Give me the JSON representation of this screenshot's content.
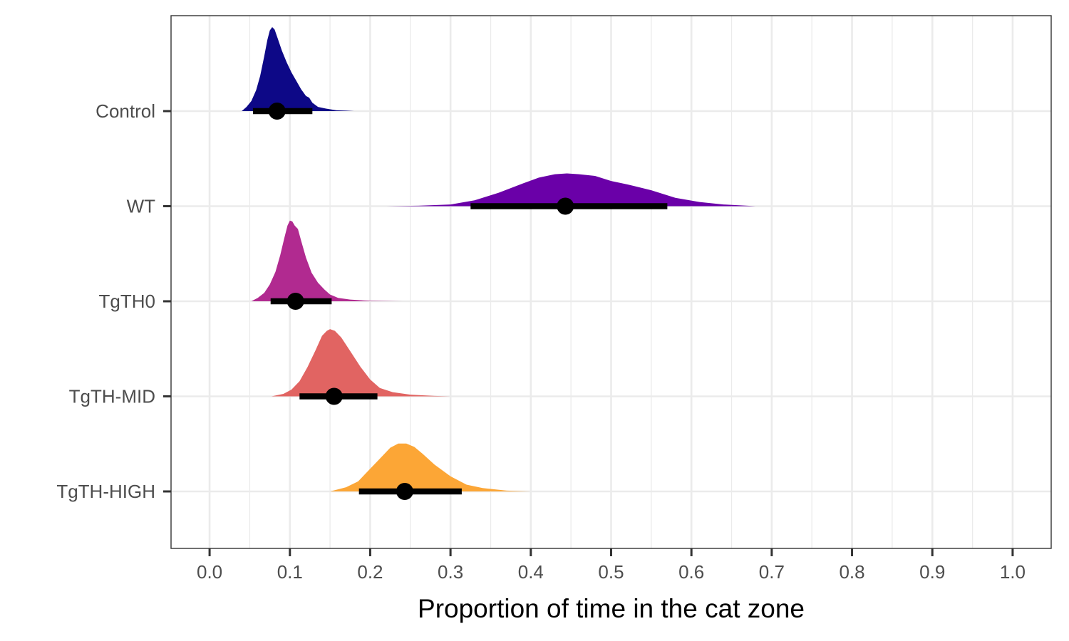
{
  "chart_data": {
    "type": "ridgeline-interval",
    "title": "",
    "xlabel": "Proportion of time in the cat zone",
    "ylabel": "",
    "xlim": [
      -0.048,
      1.048
    ],
    "x_ticks": [
      0.0,
      0.1,
      0.2,
      0.3,
      0.4,
      0.5,
      0.6,
      0.7,
      0.8,
      0.9,
      1.0
    ],
    "x_tick_labels": [
      "0.0",
      "0.1",
      "0.2",
      "0.3",
      "0.4",
      "0.5",
      "0.6",
      "0.7",
      "0.8",
      "0.9",
      "1.0"
    ],
    "grid": true,
    "legend": "none",
    "categories": [
      "Control",
      "WT",
      "TgTH0",
      "TgTH-MID",
      "TgTH-HIGH"
    ],
    "series": [
      {
        "category": "Control",
        "color": "#0d0887",
        "point": 0.084,
        "interval": [
          0.054,
          0.128
        ],
        "density": [
          [
            0.04,
            0.0
          ],
          [
            0.046,
            0.05
          ],
          [
            0.052,
            0.12
          ],
          [
            0.058,
            0.25
          ],
          [
            0.063,
            0.42
          ],
          [
            0.068,
            0.65
          ],
          [
            0.072,
            0.85
          ],
          [
            0.075,
            0.96
          ],
          [
            0.078,
            1.0
          ],
          [
            0.081,
            0.97
          ],
          [
            0.085,
            0.86
          ],
          [
            0.09,
            0.72
          ],
          [
            0.096,
            0.58
          ],
          [
            0.102,
            0.46
          ],
          [
            0.108,
            0.36
          ],
          [
            0.114,
            0.26
          ],
          [
            0.12,
            0.18
          ],
          [
            0.124,
            0.16
          ],
          [
            0.128,
            0.1
          ],
          [
            0.135,
            0.05
          ],
          [
            0.145,
            0.03
          ],
          [
            0.158,
            0.01
          ],
          [
            0.17,
            0.005
          ],
          [
            0.18,
            0.0
          ]
        ]
      },
      {
        "category": "WT",
        "color": "#6a00a8",
        "point": 0.443,
        "interval": [
          0.325,
          0.57
        ],
        "density": [
          [
            0.22,
            0.0
          ],
          [
            0.26,
            0.005
          ],
          [
            0.3,
            0.02
          ],
          [
            0.33,
            0.07
          ],
          [
            0.36,
            0.16
          ],
          [
            0.39,
            0.27
          ],
          [
            0.41,
            0.34
          ],
          [
            0.43,
            0.38
          ],
          [
            0.445,
            0.39
          ],
          [
            0.46,
            0.38
          ],
          [
            0.48,
            0.36
          ],
          [
            0.5,
            0.3
          ],
          [
            0.52,
            0.26
          ],
          [
            0.55,
            0.19
          ],
          [
            0.58,
            0.1
          ],
          [
            0.61,
            0.05
          ],
          [
            0.64,
            0.02
          ],
          [
            0.68,
            0.0
          ]
        ]
      },
      {
        "category": "TgTH0",
        "color": "#b12a90",
        "point": 0.107,
        "interval": [
          0.076,
          0.152
        ],
        "density": [
          [
            0.052,
            0.0
          ],
          [
            0.06,
            0.04
          ],
          [
            0.068,
            0.1
          ],
          [
            0.075,
            0.2
          ],
          [
            0.082,
            0.35
          ],
          [
            0.088,
            0.55
          ],
          [
            0.093,
            0.75
          ],
          [
            0.097,
            0.9
          ],
          [
            0.1,
            0.96
          ],
          [
            0.103,
            0.95
          ],
          [
            0.106,
            0.9
          ],
          [
            0.11,
            0.86
          ],
          [
            0.114,
            0.72
          ],
          [
            0.12,
            0.52
          ],
          [
            0.127,
            0.34
          ],
          [
            0.135,
            0.22
          ],
          [
            0.143,
            0.14
          ],
          [
            0.15,
            0.08
          ],
          [
            0.16,
            0.04
          ],
          [
            0.175,
            0.02
          ],
          [
            0.2,
            0.005
          ],
          [
            0.24,
            0.0
          ]
        ]
      },
      {
        "category": "TgTH-MID",
        "color": "#e16462",
        "point": 0.155,
        "interval": [
          0.112,
          0.209
        ],
        "density": [
          [
            0.077,
            0.0
          ],
          [
            0.092,
            0.03
          ],
          [
            0.102,
            0.08
          ],
          [
            0.112,
            0.18
          ],
          [
            0.122,
            0.35
          ],
          [
            0.132,
            0.55
          ],
          [
            0.14,
            0.72
          ],
          [
            0.146,
            0.78
          ],
          [
            0.15,
            0.8
          ],
          [
            0.156,
            0.78
          ],
          [
            0.164,
            0.7
          ],
          [
            0.175,
            0.54
          ],
          [
            0.188,
            0.35
          ],
          [
            0.2,
            0.2
          ],
          [
            0.212,
            0.1
          ],
          [
            0.228,
            0.05
          ],
          [
            0.25,
            0.02
          ],
          [
            0.28,
            0.005
          ],
          [
            0.3,
            0.0
          ]
        ]
      },
      {
        "category": "TgTH-HIGH",
        "color": "#fca636",
        "point": 0.243,
        "interval": [
          0.186,
          0.314
        ],
        "density": [
          [
            0.15,
            0.0
          ],
          [
            0.17,
            0.05
          ],
          [
            0.185,
            0.12
          ],
          [
            0.2,
            0.27
          ],
          [
            0.215,
            0.42
          ],
          [
            0.225,
            0.52
          ],
          [
            0.235,
            0.57
          ],
          [
            0.245,
            0.57
          ],
          [
            0.255,
            0.53
          ],
          [
            0.265,
            0.45
          ],
          [
            0.28,
            0.32
          ],
          [
            0.3,
            0.18
          ],
          [
            0.32,
            0.08
          ],
          [
            0.34,
            0.04
          ],
          [
            0.37,
            0.01
          ],
          [
            0.4,
            0.0
          ]
        ]
      }
    ]
  }
}
